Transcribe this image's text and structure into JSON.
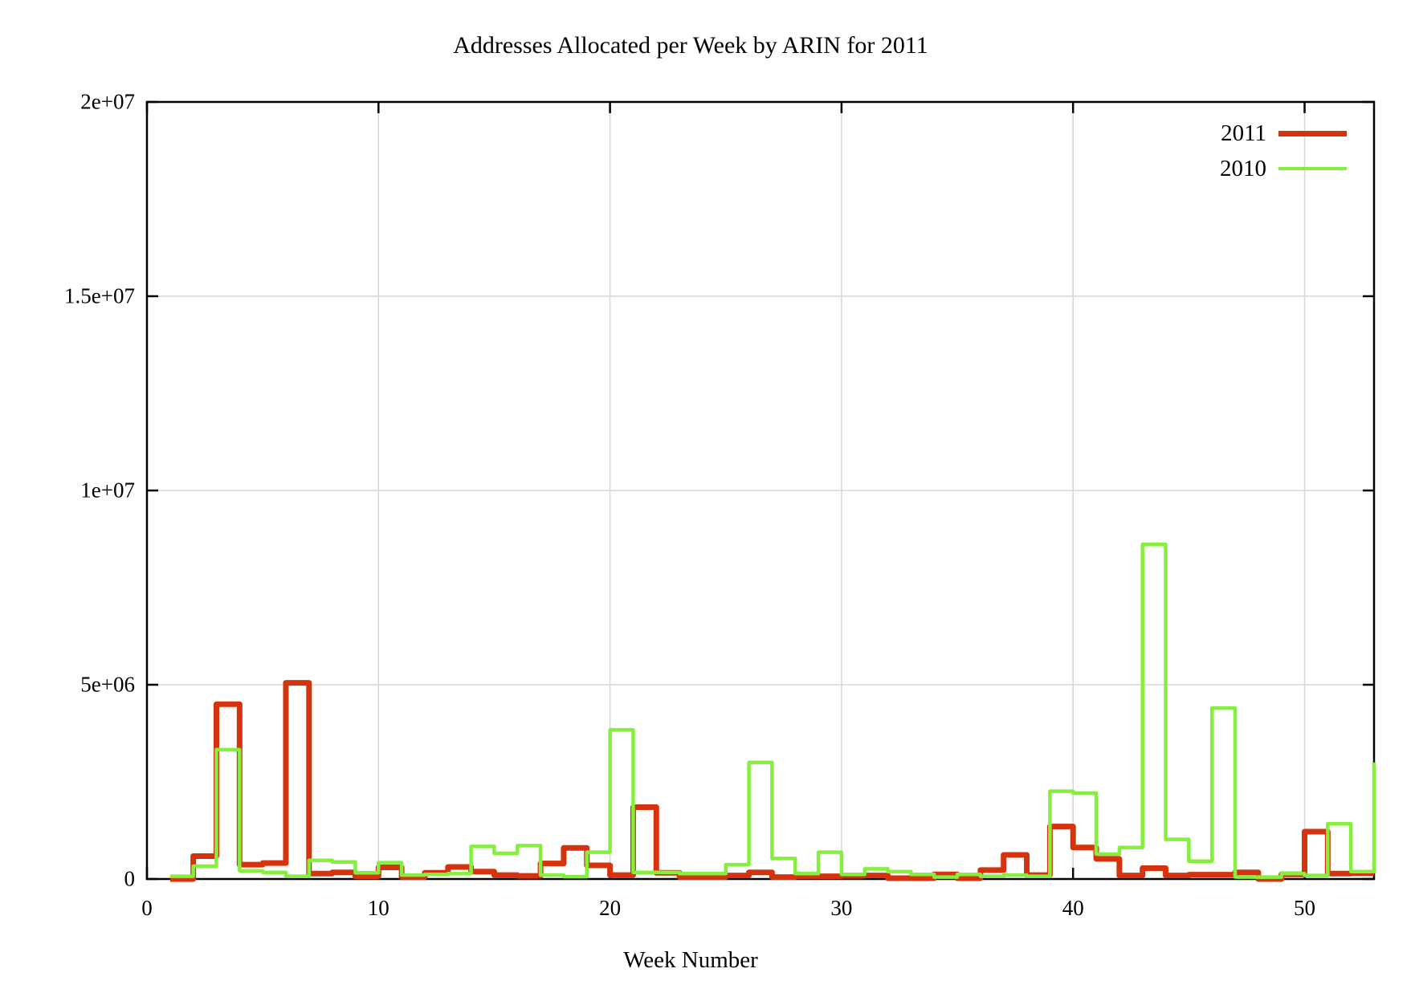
{
  "title": "Addresses Allocated per Week by ARIN for 2011",
  "legend": {
    "items": [
      {
        "label": "2011"
      },
      {
        "label": "2010"
      }
    ]
  },
  "chart_data": {
    "type": "line",
    "style": "steps",
    "title": "Addresses Allocated per Week by ARIN for 2011",
    "xlabel": "Week Number",
    "ylabel": "",
    "grid": true,
    "legend_position": "top-right-inside",
    "background": "#ffffff",
    "grid_color": "#d6d6d6",
    "border_color": "#000000",
    "xlim": [
      0,
      53
    ],
    "ylim": [
      0,
      20000000
    ],
    "xticks": {
      "values": [
        0,
        10,
        20,
        30,
        40,
        50
      ],
      "labels": [
        "0",
        "10",
        "20",
        "30",
        "40",
        "50"
      ]
    },
    "yticks": {
      "values": [
        0,
        5000000,
        10000000,
        15000000,
        20000000
      ],
      "labels": [
        "0",
        "5e+06",
        "1e+07",
        "1.5e+07",
        "2e+07"
      ]
    },
    "x_weeks": [
      1,
      2,
      3,
      4,
      5,
      6,
      7,
      8,
      9,
      10,
      11,
      12,
      13,
      14,
      15,
      16,
      17,
      18,
      19,
      20,
      21,
      22,
      23,
      24,
      25,
      26,
      27,
      28,
      29,
      30,
      31,
      32,
      33,
      34,
      35,
      36,
      37,
      38,
      39,
      40,
      41,
      42,
      43,
      44,
      45,
      46,
      47,
      48,
      49,
      50,
      51,
      52,
      53
    ],
    "series": [
      {
        "name": "2011",
        "color": "#d5330d",
        "line_width": 7,
        "values": [
          0,
          590000,
          4500000,
          370000,
          410000,
          5050000,
          140000,
          170000,
          70000,
          300000,
          50000,
          160000,
          310000,
          190000,
          100000,
          80000,
          400000,
          800000,
          350000,
          100000,
          1850000,
          160000,
          50000,
          50000,
          90000,
          170000,
          50000,
          70000,
          70000,
          80000,
          90000,
          20000,
          20000,
          120000,
          20000,
          230000,
          620000,
          100000,
          1350000,
          810000,
          520000,
          90000,
          280000,
          90000,
          110000,
          110000,
          170000,
          0,
          120000,
          1220000,
          140000,
          150000,
          150000
        ]
      },
      {
        "name": "2010",
        "color": "#85ef3e",
        "line_width": 4.5,
        "values": [
          70000,
          330000,
          3330000,
          210000,
          170000,
          70000,
          480000,
          440000,
          160000,
          420000,
          100000,
          120000,
          140000,
          840000,
          660000,
          860000,
          100000,
          60000,
          690000,
          3840000,
          170000,
          170000,
          140000,
          140000,
          370000,
          3000000,
          530000,
          140000,
          690000,
          120000,
          260000,
          190000,
          120000,
          50000,
          120000,
          70000,
          100000,
          70000,
          2260000,
          2210000,
          640000,
          810000,
          8610000,
          1020000,
          460000,
          4400000,
          50000,
          50000,
          140000,
          90000,
          1420000,
          190000,
          3000000
        ]
      }
    ]
  }
}
